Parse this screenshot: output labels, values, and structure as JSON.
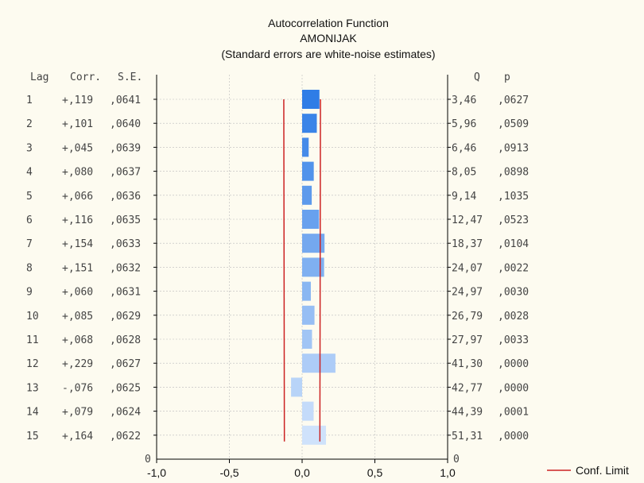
{
  "chart_data": {
    "type": "bar",
    "orientation": "horizontal",
    "title": "Autocorrelation Function",
    "subtitle": "AMONIJAK",
    "note": "(Standard errors are white-noise estimates)",
    "column_headers": {
      "lag": "Lag",
      "corr": "Corr.",
      "se": "S.E.",
      "q": "Q",
      "p": "p"
    },
    "rows": [
      {
        "lag": "1",
        "corr_label": "+,119",
        "value": 0.119,
        "se": ",0641",
        "se_value": 0.0641,
        "q": "3,46",
        "p": ",0627"
      },
      {
        "lag": "2",
        "corr_label": "+,101",
        "value": 0.101,
        "se": ",0640",
        "se_value": 0.064,
        "q": "5,96",
        "p": ",0509"
      },
      {
        "lag": "3",
        "corr_label": "+,045",
        "value": 0.045,
        "se": ",0639",
        "se_value": 0.0639,
        "q": "6,46",
        "p": ",0913"
      },
      {
        "lag": "4",
        "corr_label": "+,080",
        "value": 0.08,
        "se": ",0637",
        "se_value": 0.0637,
        "q": "8,05",
        "p": ",0898"
      },
      {
        "lag": "5",
        "corr_label": "+,066",
        "value": 0.066,
        "se": ",0636",
        "se_value": 0.0636,
        "q": "9,14",
        "p": ",1035"
      },
      {
        "lag": "6",
        "corr_label": "+,116",
        "value": 0.116,
        "se": ",0635",
        "se_value": 0.0635,
        "q": "12,47",
        "p": ",0523"
      },
      {
        "lag": "7",
        "corr_label": "+,154",
        "value": 0.154,
        "se": ",0633",
        "se_value": 0.0633,
        "q": "18,37",
        "p": ",0104"
      },
      {
        "lag": "8",
        "corr_label": "+,151",
        "value": 0.151,
        "se": ",0632",
        "se_value": 0.0632,
        "q": "24,07",
        "p": ",0022"
      },
      {
        "lag": "9",
        "corr_label": "+,060",
        "value": 0.06,
        "se": ",0631",
        "se_value": 0.0631,
        "q": "24,97",
        "p": ",0030"
      },
      {
        "lag": "10",
        "corr_label": "+,085",
        "value": 0.085,
        "se": ",0629",
        "se_value": 0.0629,
        "q": "26,79",
        "p": ",0028"
      },
      {
        "lag": "11",
        "corr_label": "+,068",
        "value": 0.068,
        "se": ",0628",
        "se_value": 0.0628,
        "q": "27,97",
        "p": ",0033"
      },
      {
        "lag": "12",
        "corr_label": "+,229",
        "value": 0.229,
        "se": ",0627",
        "se_value": 0.0627,
        "q": "41,30",
        "p": ",0000"
      },
      {
        "lag": "13",
        "corr_label": "-,076",
        "value": -0.076,
        "se": ",0625",
        "se_value": 0.0625,
        "q": "42,77",
        "p": ",0000"
      },
      {
        "lag": "14",
        "corr_label": "+,079",
        "value": 0.079,
        "se": ",0624",
        "se_value": 0.0624,
        "q": "44,39",
        "p": ",0001"
      },
      {
        "lag": "15",
        "corr_label": "+,164",
        "value": 0.164,
        "se": ",0622",
        "se_value": 0.0622,
        "q": "51,31",
        "p": ",0000"
      }
    ],
    "x_ticks": [
      -1.0,
      -0.5,
      0.0,
      0.5,
      1.0
    ],
    "x_tick_labels": [
      "-1,0",
      "-0,5",
      "0,0",
      "0,5",
      "1,0"
    ],
    "xlim": [
      -1.0,
      1.0
    ],
    "zero_left_label": "0",
    "zero_right_label": "0",
    "confidence_limits": {
      "lower": [
        -0.126,
        -0.122
      ],
      "upper": [
        0.126,
        0.122
      ]
    },
    "legend": {
      "label": "Conf. Limit",
      "position": "bottom-right"
    },
    "grid": true,
    "colors": {
      "bar_top": "#2f7de6",
      "bar_bottom": "#cfe2fb",
      "conf_limit": "#cc2222",
      "grid": "#bbbbbb"
    }
  }
}
